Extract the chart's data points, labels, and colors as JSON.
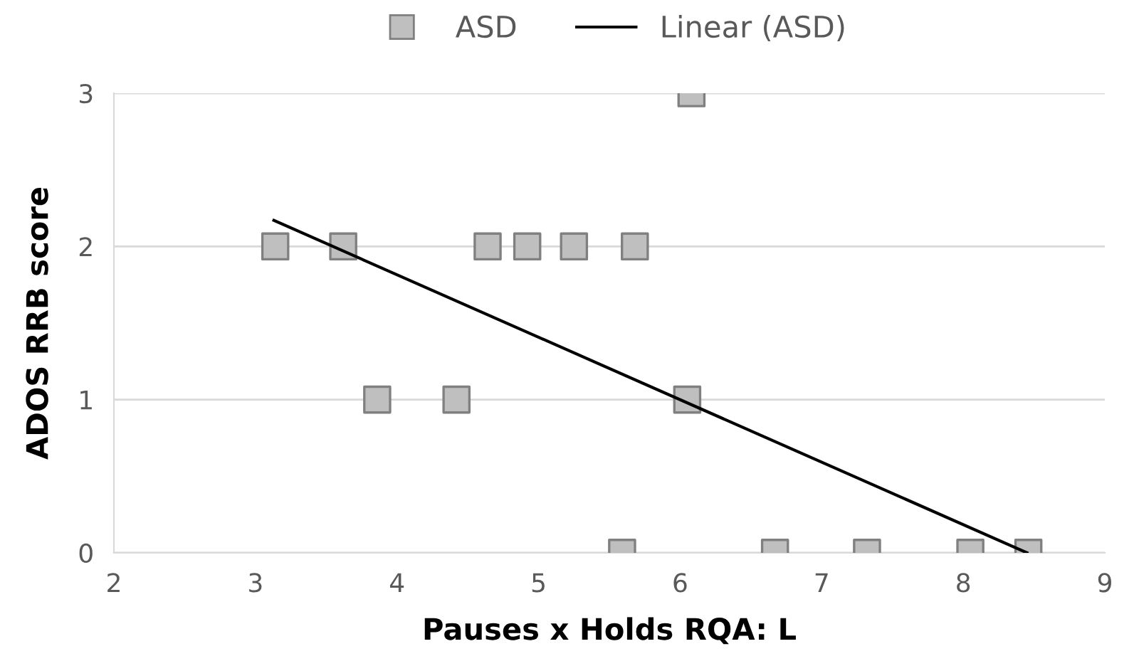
{
  "chart_data": {
    "type": "scatter",
    "xlabel": "Pauses x Holds RQA: L",
    "ylabel": "ADOS RRB score",
    "xlim": [
      2,
      9
    ],
    "xticks": [
      2,
      3,
      4,
      5,
      6,
      7,
      8,
      9
    ],
    "ylim": [
      0,
      3
    ],
    "yticks": [
      0,
      1,
      2,
      3
    ],
    "grid": "y",
    "legend": "top",
    "marker": "square",
    "series": [
      {
        "name": "ASD",
        "color": "#bfbfbf",
        "x": [
          3.14,
          3.62,
          3.86,
          4.42,
          4.64,
          4.92,
          5.25,
          5.68,
          6.08,
          6.05,
          5.59,
          6.67,
          7.32,
          8.05,
          8.46
        ],
        "values": [
          2,
          2,
          1,
          1,
          2,
          2,
          2,
          2,
          3,
          1,
          0,
          0,
          0,
          0,
          0
        ]
      },
      {
        "name": "Linear (ASD)",
        "type": "line",
        "color": "#000000",
        "x": [
          3.13,
          8.45
        ],
        "values": [
          2.17,
          0.0
        ],
        "marker": "none",
        "line_style": "solid"
      }
    ]
  }
}
